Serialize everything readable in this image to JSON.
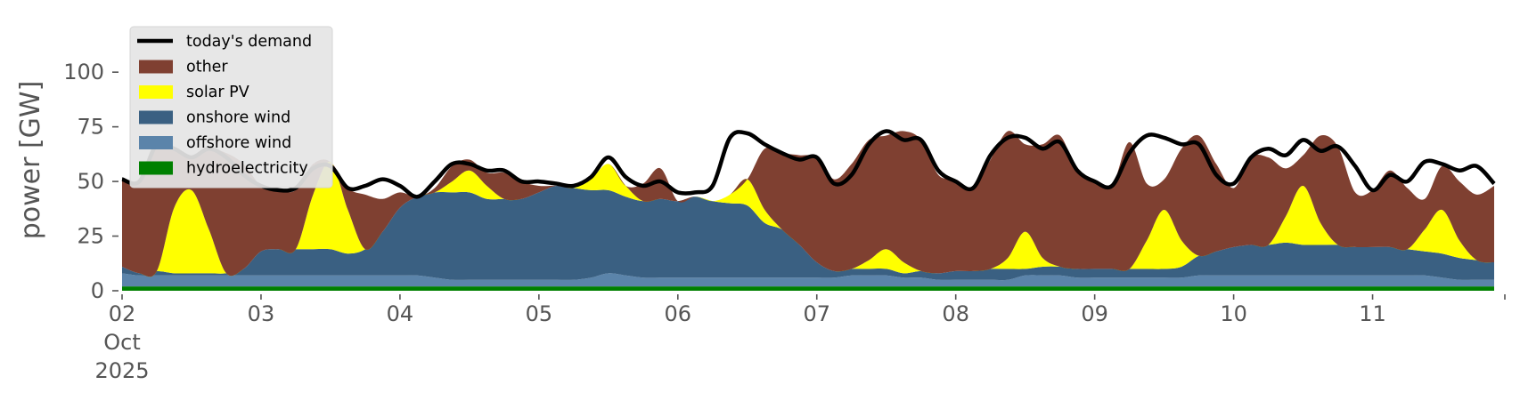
{
  "chart_data": {
    "type": "area",
    "stacked": true,
    "ylabel": "power [GW]",
    "ylim": [
      0,
      120
    ],
    "yticks": [
      0,
      25,
      50,
      75,
      100
    ],
    "x_start": "2025-10-02",
    "x_end": "2025-10-11T23:00",
    "step_hours": 3,
    "xticks": [
      {
        "value": "2025-10-02",
        "label": "02",
        "sub": [
          "Oct",
          "2025"
        ]
      },
      {
        "value": "2025-10-03",
        "label": "03"
      },
      {
        "value": "2025-10-04",
        "label": "04"
      },
      {
        "value": "2025-10-05",
        "label": "05"
      },
      {
        "value": "2025-10-06",
        "label": "06"
      },
      {
        "value": "2025-10-07",
        "label": "07"
      },
      {
        "value": "2025-10-08",
        "label": "08"
      },
      {
        "value": "2025-10-09",
        "label": "09"
      },
      {
        "value": "2025-10-10",
        "label": "10"
      },
      {
        "value": "2025-10-11",
        "label": "11"
      }
    ],
    "legend_position": "top-left",
    "series": [
      {
        "name": "hydroelectricity",
        "color": "#008000",
        "values": [
          2,
          2,
          2,
          2,
          2,
          2,
          2,
          2,
          2,
          2,
          2,
          2,
          2,
          2,
          2,
          2,
          2,
          2,
          2,
          2,
          2,
          2,
          2,
          2,
          2,
          2,
          2,
          2,
          2,
          2,
          2,
          2,
          2,
          2,
          2,
          2,
          2,
          2,
          2,
          2,
          2,
          2,
          2,
          2,
          2,
          2,
          2,
          2,
          2,
          2,
          2,
          2,
          2,
          2,
          2,
          2,
          2,
          2,
          2,
          2,
          2,
          2,
          2,
          2,
          2,
          2,
          2,
          2,
          2,
          2,
          2,
          2,
          2,
          2,
          2,
          2,
          2,
          2,
          2,
          2
        ]
      },
      {
        "name": "offshore wind",
        "color": "#5b84aa",
        "values": [
          6,
          5,
          5,
          5,
          5,
          5,
          5,
          5,
          5,
          5,
          5,
          5,
          5,
          5,
          5,
          5,
          5,
          5,
          4,
          3,
          3,
          3,
          3,
          3,
          3,
          3,
          3,
          4,
          6,
          5,
          4,
          4,
          4,
          4,
          4,
          4,
          4,
          4,
          4,
          4,
          4,
          4,
          5,
          5,
          5,
          4,
          4,
          3,
          3,
          3,
          3,
          3,
          5,
          5,
          5,
          4,
          4,
          4,
          4,
          4,
          4,
          4,
          5,
          5,
          5,
          5,
          5,
          5,
          5,
          5,
          5,
          5,
          5,
          5,
          5,
          5,
          4,
          3,
          3,
          3
        ]
      },
      {
        "name": "onshore wind",
        "color": "#3a6082",
        "values": [
          3,
          1,
          2,
          1,
          1,
          1,
          1,
          3,
          11,
          12,
          12,
          12,
          12,
          10,
          12,
          20,
          31,
          36,
          39,
          40,
          40,
          37,
          37,
          37,
          40,
          43,
          42,
          40,
          38,
          36,
          35,
          36,
          35,
          37,
          35,
          34,
          33,
          25,
          22,
          15,
          7,
          3,
          3,
          3,
          3,
          2,
          3,
          3,
          4,
          4,
          5,
          5,
          3,
          4,
          4,
          4,
          4,
          4,
          4,
          4,
          4,
          5,
          9,
          11,
          13,
          14,
          14,
          15,
          14,
          14,
          14,
          13,
          13,
          13,
          12,
          11,
          11,
          10,
          9,
          8
        ]
      },
      {
        "name": "solar PV",
        "color": "#ffff00",
        "values": [
          0,
          0,
          0,
          30,
          38,
          20,
          0,
          0,
          0,
          0,
          0,
          25,
          40,
          20,
          0,
          0,
          0,
          0,
          0,
          5,
          10,
          6,
          0,
          0,
          0,
          0,
          0,
          5,
          12,
          5,
          0,
          0,
          0,
          0,
          0,
          4,
          12,
          6,
          0,
          0,
          0,
          0,
          0,
          4,
          9,
          5,
          0,
          0,
          0,
          0,
          0,
          5,
          17,
          4,
          0,
          0,
          0,
          0,
          0,
          13,
          27,
          12,
          0,
          0,
          0,
          0,
          0,
          12,
          27,
          10,
          0,
          0,
          0,
          0,
          0,
          10,
          20,
          8,
          0,
          0
        ]
      },
      {
        "name": "other",
        "color": "#7f4031",
        "values": [
          40,
          42,
          58,
          27,
          15,
          37,
          55,
          48,
          30,
          27,
          27,
          14,
          0,
          10,
          25,
          15,
          7,
          0,
          2,
          7,
          5,
          6,
          12,
          8,
          3,
          0,
          0,
          0,
          0,
          0,
          8,
          14,
          0,
          0,
          0,
          0,
          0,
          28,
          35,
          41,
          48,
          42,
          48,
          55,
          52,
          60,
          60,
          45,
          42,
          38,
          50,
          58,
          40,
          52,
          60,
          45,
          40,
          38,
          58,
          26,
          14,
          42,
          55,
          40,
          27,
          40,
          40,
          22,
          14,
          40,
          45,
          25,
          26,
          35,
          28,
          14,
          20,
          27,
          30,
          35
        ]
      }
    ],
    "demand": {
      "name": "today's demand",
      "color": "#000000",
      "values": [
        51,
        50,
        67,
        65,
        61,
        65,
        61,
        53,
        48,
        46,
        47,
        56,
        57,
        47,
        48,
        51,
        48,
        43,
        50,
        58,
        58,
        55,
        55,
        50,
        50,
        49,
        48,
        52,
        61,
        52,
        48,
        50,
        45,
        45,
        48,
        70,
        72,
        67,
        63,
        60,
        61,
        49,
        53,
        67,
        73,
        69,
        69,
        55,
        50,
        47,
        62,
        70,
        70,
        65,
        68,
        55,
        50,
        48,
        63,
        71,
        70,
        67,
        67,
        53,
        49,
        61,
        65,
        62,
        69,
        64,
        66,
        57,
        46,
        53,
        50,
        59,
        58,
        55,
        57,
        49
      ]
    }
  }
}
